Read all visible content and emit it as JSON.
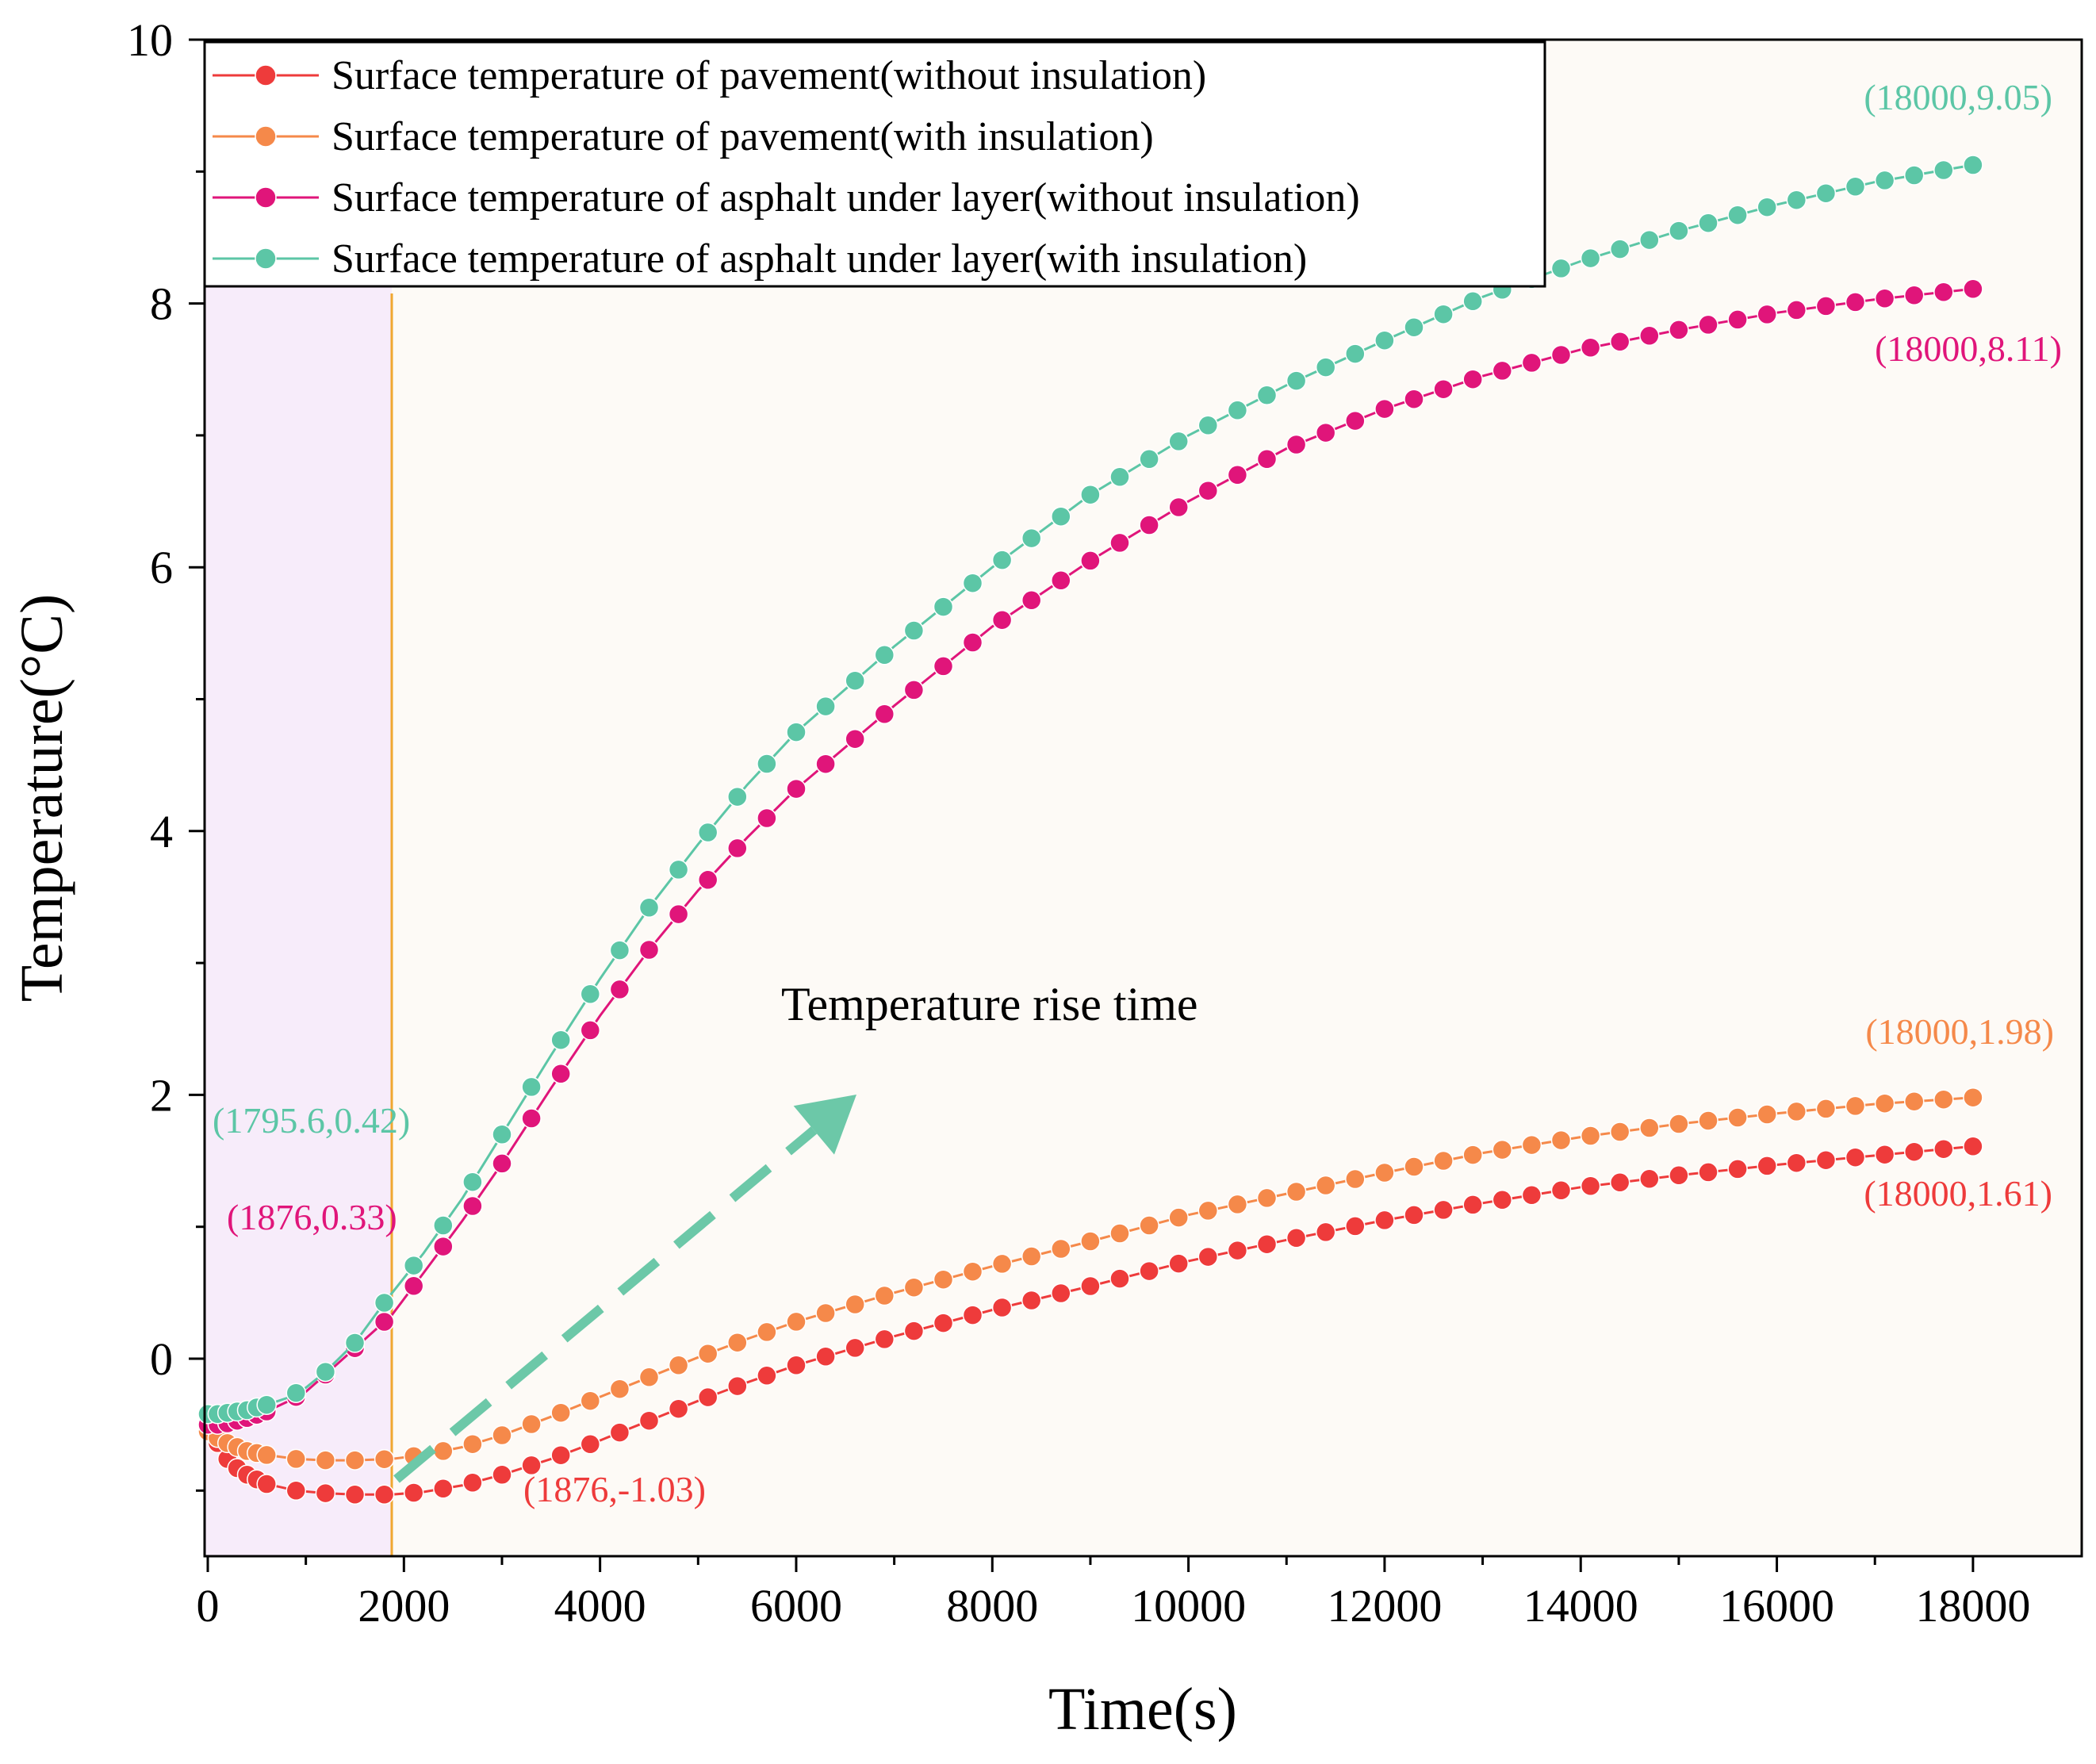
{
  "chart_data": {
    "type": "line",
    "xlabel": "Time(s)",
    "ylabel": "Temperature(°C)",
    "xlim": [
      -200,
      19000
    ],
    "ylim": [
      -1.5,
      10
    ],
    "x_major_ticks": [
      0,
      2000,
      4000,
      6000,
      8000,
      10000,
      12000,
      14000,
      16000,
      18000
    ],
    "x_tick_labels": [
      "0",
      "2000",
      "4000",
      "6000",
      "8000",
      "10000",
      "12000",
      "14000",
      "16000",
      "18000"
    ],
    "y_major_ticks": [
      0,
      2,
      4,
      6,
      8,
      10
    ],
    "y_tick_labels": [
      "0",
      "2",
      "4",
      "6",
      "8",
      "10"
    ],
    "shaded_region_x": [
      0,
      1876
    ],
    "vertical_line_x": 1876,
    "legend_position": "top-left",
    "arrow_text": "Temperature rise time",
    "series": [
      {
        "name": "Surface temperature of pavement(without insulation)",
        "color": "#ee3b3b",
        "x": [
          0,
          100,
          200,
          300,
          400,
          600,
          900,
          1200,
          1500,
          1876,
          2200,
          2600,
          3000,
          3500,
          4000,
          4500,
          5000,
          5500,
          6000,
          7000,
          8000,
          9000,
          10000,
          11000,
          12000,
          13000,
          14000,
          15000,
          16000,
          17000,
          18000
        ],
        "values": [
          -0.5,
          -0.64,
          -0.76,
          -0.83,
          -0.88,
          -0.95,
          -1.0,
          -1.02,
          -1.03,
          -1.03,
          -1.01,
          -0.96,
          -0.88,
          -0.76,
          -0.62,
          -0.47,
          -0.32,
          -0.18,
          -0.05,
          0.17,
          0.37,
          0.55,
          0.74,
          0.9,
          1.05,
          1.18,
          1.3,
          1.39,
          1.47,
          1.54,
          1.61
        ]
      },
      {
        "name": "Surface temperature of pavement(with insulation)",
        "color": "#f5894a",
        "x": [
          0,
          100,
          200,
          300,
          400,
          600,
          900,
          1200,
          1500,
          1876,
          2200,
          2600,
          3000,
          3500,
          4000,
          4500,
          5000,
          5500,
          6000,
          7000,
          8000,
          9000,
          10000,
          11000,
          12000,
          13000,
          14000,
          15000,
          16000,
          17000,
          18000
        ],
        "values": [
          -0.55,
          -0.6,
          -0.64,
          -0.67,
          -0.7,
          -0.73,
          -0.76,
          -0.77,
          -0.77,
          -0.76,
          -0.73,
          -0.67,
          -0.58,
          -0.44,
          -0.29,
          -0.14,
          0.01,
          0.15,
          0.28,
          0.5,
          0.7,
          0.89,
          1.09,
          1.25,
          1.41,
          1.56,
          1.68,
          1.78,
          1.86,
          1.93,
          1.98
        ]
      },
      {
        "name": "Surface temperature of asphalt under layer(without insulation)",
        "color": "#e0157a",
        "x": [
          0,
          100,
          200,
          300,
          400,
          600,
          800,
          1000,
          1200,
          1500,
          1876,
          2200,
          2600,
          3000,
          3500,
          4000,
          4500,
          5000,
          5500,
          6000,
          7000,
          8000,
          9000,
          10000,
          11000,
          12000,
          13000,
          14000,
          15000,
          16000,
          17000,
          18000
        ],
        "values": [
          -0.5,
          -0.5,
          -0.49,
          -0.47,
          -0.45,
          -0.4,
          -0.33,
          -0.25,
          -0.12,
          0.08,
          0.33,
          0.65,
          1.05,
          1.48,
          2.05,
          2.6,
          3.1,
          3.55,
          3.95,
          4.32,
          4.95,
          5.55,
          6.05,
          6.5,
          6.9,
          7.2,
          7.45,
          7.65,
          7.8,
          7.93,
          8.03,
          8.11
        ]
      },
      {
        "name": "Surface temperature of asphalt under layer(with insulation)",
        "color": "#5cc6a6",
        "x": [
          0,
          100,
          200,
          300,
          400,
          600,
          800,
          1000,
          1200,
          1500,
          1795.6,
          2200,
          2600,
          3000,
          3500,
          4000,
          4500,
          5000,
          5500,
          6000,
          7000,
          8000,
          9000,
          10000,
          11000,
          12000,
          13000,
          14000,
          15000,
          16000,
          17000,
          18000
        ],
        "values": [
          -0.42,
          -0.42,
          -0.41,
          -0.4,
          -0.39,
          -0.35,
          -0.3,
          -0.22,
          -0.1,
          0.12,
          0.42,
          0.8,
          1.22,
          1.7,
          2.3,
          2.88,
          3.42,
          3.9,
          4.35,
          4.75,
          5.4,
          6.0,
          6.55,
          7.0,
          7.38,
          7.72,
          8.05,
          8.32,
          8.55,
          8.75,
          8.92,
          9.05
        ]
      }
    ],
    "annotations": [
      {
        "text": "(18000,9.05)",
        "color": "#5cc6a6"
      },
      {
        "text": "(18000,8.11)",
        "color": "#e0157a"
      },
      {
        "text": "(18000,1.98)",
        "color": "#f5894a"
      },
      {
        "text": "(18000,1.61)",
        "color": "#ee3b3b"
      },
      {
        "text": "(1795.6,0.42)",
        "color": "#5cc6a6"
      },
      {
        "text": "(1876,0.33)",
        "color": "#e0157a"
      },
      {
        "text": "(1876,-1.03)",
        "color": "#ee3b3b"
      }
    ]
  }
}
